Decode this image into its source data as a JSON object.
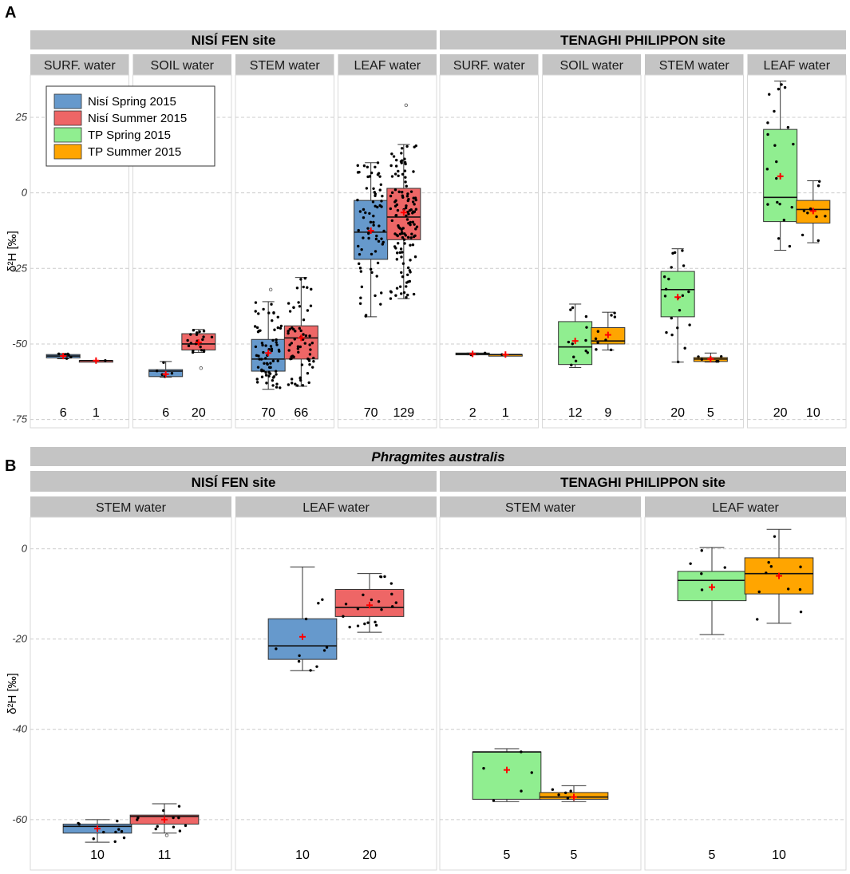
{
  "panels": [
    {
      "letter": "A",
      "species": null,
      "ylabel": "δ²H [‰]",
      "ylim": [
        -76,
        39
      ],
      "yticks": [
        25,
        0,
        -25,
        -50,
        -75
      ],
      "tick_labels": [
        "25",
        "0",
        "-25",
        "-50",
        "-75"
      ],
      "sites": [
        {
          "name": "NISÍ FEN site",
          "facets": [
            {
              "label": "SURF. water",
              "boxes": [
                {
                  "group": 0,
                  "n": "6",
                  "q1": -54.6,
                  "median": -54.0,
                  "q3": -53.5,
                  "lo": -54.9,
                  "hi": -53.2,
                  "mean": -54.0,
                  "outliers": []
                },
                {
                  "group": 1,
                  "n": "1",
                  "q1": -55.5,
                  "median": -55.5,
                  "q3": -55.5,
                  "lo": -55.5,
                  "hi": -55.5,
                  "mean": -55.5,
                  "outliers": []
                }
              ]
            },
            {
              "label": "SOIL water",
              "boxes": [
                {
                  "group": 0,
                  "n": "6",
                  "q1": -60.8,
                  "median": -59.0,
                  "q3": -58.5,
                  "lo": -61.0,
                  "hi": -55.8,
                  "mean": -60.0,
                  "outliers": []
                },
                {
                  "group": 1,
                  "n": "20",
                  "q1": -52.0,
                  "median": -50.0,
                  "q3": -46.6,
                  "lo": -52.8,
                  "hi": -45.2,
                  "mean": -49.5,
                  "outliers": [
                    -58.0
                  ]
                }
              ]
            },
            {
              "label": "STEM water",
              "boxes": [
                {
                  "group": 0,
                  "n": "70",
                  "q1": -59.0,
                  "median": -55.0,
                  "q3": -48.5,
                  "lo": -65.0,
                  "hi": -36.0,
                  "mean": -53.0,
                  "outliers": [
                    -32.0
                  ]
                },
                {
                  "group": 1,
                  "n": "66",
                  "q1": -55.0,
                  "median": -48.0,
                  "q3": -44.0,
                  "lo": -64.0,
                  "hi": -28.0,
                  "mean": -48.0,
                  "outliers": []
                }
              ]
            },
            {
              "label": "LEAF water",
              "boxes": [
                {
                  "group": 0,
                  "n": "70",
                  "q1": -22.0,
                  "median": -13.0,
                  "q3": -2.5,
                  "lo": -41.0,
                  "hi": 10.0,
                  "mean": -12.5,
                  "outliers": []
                },
                {
                  "group": 1,
                  "n": "129",
                  "q1": -15.5,
                  "median": -8.0,
                  "q3": 1.5,
                  "lo": -35.0,
                  "hi": 16.0,
                  "mean": -6.5,
                  "outliers": [
                    29.0
                  ]
                }
              ]
            }
          ]
        },
        {
          "name": "TENAGHI PHILIPPON site",
          "facets": [
            {
              "label": "SURF. water",
              "boxes": [
                {
                  "group": 2,
                  "n": "2",
                  "q1": -53.6,
                  "median": -53.3,
                  "q3": -53.0,
                  "lo": -53.6,
                  "hi": -53.0,
                  "mean": -53.3,
                  "outliers": []
                },
                {
                  "group": 3,
                  "n": "1",
                  "q1": -53.5,
                  "median": -53.5,
                  "q3": -53.5,
                  "lo": -53.5,
                  "hi": -53.5,
                  "mean": -53.5,
                  "outliers": []
                }
              ]
            },
            {
              "label": "SOIL water",
              "boxes": [
                {
                  "group": 2,
                  "n": "12",
                  "q1": -56.8,
                  "median": -51.0,
                  "q3": -42.6,
                  "lo": -57.8,
                  "hi": -36.8,
                  "mean": -49.0,
                  "outliers": []
                },
                {
                  "group": 3,
                  "n": "9",
                  "q1": -50.0,
                  "median": -49.0,
                  "q3": -44.6,
                  "lo": -52.0,
                  "hi": -39.5,
                  "mean": -47.0,
                  "outliers": []
                }
              ]
            },
            {
              "label": "STEM water",
              "boxes": [
                {
                  "group": 2,
                  "n": "20",
                  "q1": -41.0,
                  "median": -32.0,
                  "q3": -26.0,
                  "lo": -56.0,
                  "hi": -18.5,
                  "mean": -34.5,
                  "outliers": []
                },
                {
                  "group": 3,
                  "n": "5",
                  "q1": -55.8,
                  "median": -55.0,
                  "q3": -54.5,
                  "lo": -56.0,
                  "hi": -53.0,
                  "mean": -55.0,
                  "outliers": []
                }
              ]
            },
            {
              "label": "LEAF water",
              "boxes": [
                {
                  "group": 2,
                  "n": "20",
                  "q1": -9.5,
                  "median": -1.5,
                  "q3": 21.0,
                  "lo": -19.0,
                  "hi": 37.0,
                  "mean": 5.5,
                  "outliers": []
                },
                {
                  "group": 3,
                  "n": "10",
                  "q1": -10.0,
                  "median": -5.5,
                  "q3": -2.5,
                  "lo": -16.5,
                  "hi": 4.0,
                  "mean": -6.0,
                  "outliers": []
                }
              ]
            }
          ]
        }
      ]
    },
    {
      "letter": "B",
      "species": "Phragmites australis",
      "ylabel": "δ²H [‰]",
      "ylim": [
        -70,
        7
      ],
      "yticks": [
        0,
        -20,
        -40,
        -60
      ],
      "tick_labels": [
        "0",
        "-20",
        "-40",
        "-60"
      ],
      "sites": [
        {
          "name": "NISÍ FEN site",
          "facets": [
            {
              "label": "STEM water",
              "boxes": [
                {
                  "group": 0,
                  "n": "10",
                  "q1": -63.0,
                  "median": -61.5,
                  "q3": -61.0,
                  "lo": -65.0,
                  "hi": -60.0,
                  "mean": -62.0,
                  "outliers": []
                },
                {
                  "group": 1,
                  "n": "11",
                  "q1": -61.0,
                  "median": -59.3,
                  "q3": -59.0,
                  "lo": -63.0,
                  "hi": -56.5,
                  "mean": -60.0,
                  "outliers": [
                    -63.5
                  ]
                }
              ]
            },
            {
              "label": "LEAF water",
              "boxes": [
                {
                  "group": 0,
                  "n": "10",
                  "q1": -24.5,
                  "median": -21.5,
                  "q3": -15.5,
                  "lo": -27.0,
                  "hi": -4.0,
                  "mean": -19.5,
                  "outliers": []
                },
                {
                  "group": 1,
                  "n": "20",
                  "q1": -15.0,
                  "median": -13.0,
                  "q3": -9.0,
                  "lo": -18.5,
                  "hi": -5.5,
                  "mean": -12.5,
                  "outliers": []
                }
              ]
            }
          ]
        },
        {
          "name": "TENAGHI PHILIPPON site",
          "facets": [
            {
              "label": "STEM water",
              "boxes": [
                {
                  "group": 2,
                  "n": "5",
                  "q1": -55.5,
                  "median": -45.0,
                  "q3": -45.0,
                  "lo": -56.0,
                  "hi": -44.3,
                  "mean": -49.0,
                  "outliers": []
                },
                {
                  "group": 3,
                  "n": "5",
                  "q1": -55.5,
                  "median": -55.0,
                  "q3": -54.0,
                  "lo": -56.0,
                  "hi": -52.5,
                  "mean": -55.0,
                  "outliers": []
                }
              ]
            },
            {
              "label": "LEAF water",
              "boxes": [
                {
                  "group": 2,
                  "n": "5",
                  "q1": -11.5,
                  "median": -7.0,
                  "q3": -5.0,
                  "lo": -19.0,
                  "hi": 0.3,
                  "mean": -8.5,
                  "outliers": []
                },
                {
                  "group": 3,
                  "n": "10",
                  "q1": -10.0,
                  "median": -5.5,
                  "q3": -2.0,
                  "lo": -16.5,
                  "hi": 4.3,
                  "mean": -6.0,
                  "outliers": []
                }
              ]
            }
          ]
        }
      ]
    }
  ],
  "chart_data": [
    {
      "type": "box",
      "panel": "A",
      "ylabel": "δ²H [‰]",
      "ylim": [
        -76,
        39
      ],
      "legend": [
        "Nisí Spring 2015",
        "Nisí Summer 2015",
        "TP Spring 2015",
        "TP Summer 2015"
      ],
      "facets": [
        "NISÍ FEN site / SURF. water",
        "NISÍ FEN site / SOIL water",
        "NISÍ FEN site / STEM water",
        "NISÍ FEN site / LEAF water",
        "TENAGHI PHILIPPON site / SURF. water",
        "TENAGHI PHILIPPON site / SOIL water",
        "TENAGHI PHILIPPON site / STEM water",
        "TENAGHI PHILIPPON site / LEAF water"
      ]
    },
    {
      "type": "box",
      "panel": "B",
      "title": "Phragmites australis",
      "ylabel": "δ²H [‰]",
      "ylim": [
        -70,
        7
      ],
      "facets": [
        "NISÍ FEN site / STEM water",
        "NISÍ FEN site / LEAF water",
        "TENAGHI PHILIPPON site / STEM water",
        "TENAGHI PHILIPPON site / LEAF water"
      ]
    }
  ],
  "legend": {
    "items": [
      {
        "label": "Nisí Spring 2015",
        "color": "#6699cc"
      },
      {
        "label": "Nisí Summer 2015",
        "color": "#ee6666"
      },
      {
        "label": "TP Spring 2015",
        "color": "#90ee90"
      },
      {
        "label": "TP Summer 2015",
        "color": "#ffa500"
      }
    ]
  },
  "colors": {
    "strip": "#c4c4c4",
    "grid": "#cccccc",
    "mean_marker": "#ff0000",
    "whisker": "#333333"
  }
}
